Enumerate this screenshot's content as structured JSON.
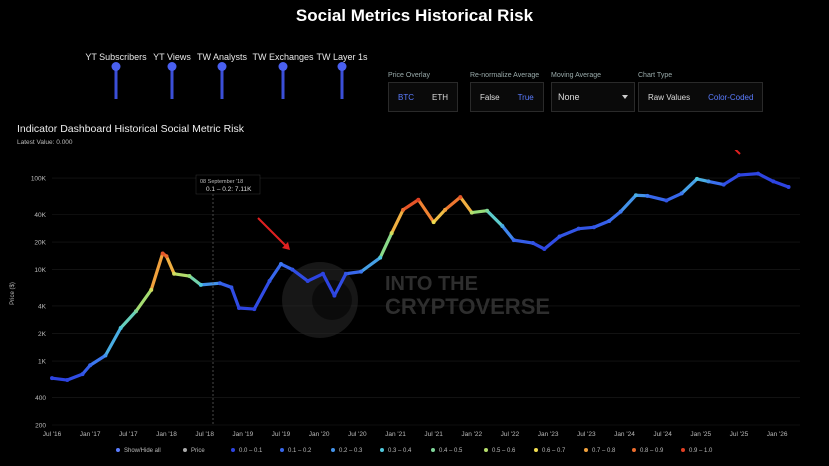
{
  "header": {
    "title": "Social Metrics Historical Risk"
  },
  "sliders": [
    {
      "label": "YT Subscribers"
    },
    {
      "label": "YT Views"
    },
    {
      "label": "TW Analysts"
    },
    {
      "label": "TW Exchanges"
    },
    {
      "label": "TW Layer 1s"
    }
  ],
  "controls": {
    "price_overlay": {
      "caption": "Price Overlay",
      "options": [
        "BTC",
        "ETH"
      ]
    },
    "renormalize": {
      "caption": "Re-normalize Average",
      "options": [
        "False",
        "True"
      ]
    },
    "moving_average": {
      "caption": "Moving Average",
      "value": "None"
    },
    "chart_type": {
      "caption": "Chart Type",
      "options": [
        "Raw Values",
        "Color-Coded"
      ]
    }
  },
  "indicator": {
    "title": "Indicator Dashboard Historical Social Metric Risk",
    "latest": "Latest Value: 0.000"
  },
  "colors": {
    "accent": "#5b7cff",
    "low": "#2f37d8",
    "high": "#e03020"
  },
  "watermark": {
    "line1": "INTO THE",
    "line2": "CRYPTOVERSE"
  },
  "tooltip": {
    "date": "08 September '18",
    "text": "0.1 – 0.2: 7.11K"
  },
  "legend": [
    "Show/Hide all",
    "Price",
    "0.0 – 0.1",
    "0.1 – 0.2",
    "0.2 – 0.3",
    "0.3 – 0.4",
    "0.4 – 0.5",
    "0.5 – 0.6",
    "0.6 – 0.7",
    "0.7 – 0.8",
    "0.8 – 0.9",
    "0.9 – 1.0"
  ],
  "chart_data": {
    "type": "scatter",
    "ylabel": "Price ($)",
    "yscale": "log",
    "ylim": [
      200,
      150000
    ],
    "y_ticks": [
      {
        "v": 100000,
        "l": "100K"
      },
      {
        "v": 40000,
        "l": "40K"
      },
      {
        "v": 20000,
        "l": "20K"
      },
      {
        "v": 10000,
        "l": "10K"
      },
      {
        "v": 4000,
        "l": "4K"
      },
      {
        "v": 2000,
        "l": "2K"
      },
      {
        "v": 1000,
        "l": "1K"
      },
      {
        "v": 400,
        "l": "400"
      },
      {
        "v": 200,
        "l": "200"
      }
    ],
    "x_ticks": [
      "Jul '16",
      "Jan '17",
      "Jul '17",
      "Jan '18",
      "Jul '18",
      "Jan '19",
      "Jul '19",
      "Jan '20",
      "Jul '20",
      "Jan '21",
      "Jul '21",
      "Jan '22",
      "Jul '22",
      "Jan '23",
      "Jul '23",
      "Jan '24",
      "Jul '24",
      "Jan '25",
      "Jul '25",
      "Jan '26"
    ],
    "x_range": [
      2016.5,
      2026.3
    ],
    "points": [
      [
        2016.5,
        650,
        0.05
      ],
      [
        2016.7,
        620,
        0.05
      ],
      [
        2016.9,
        720,
        0.1
      ],
      [
        2017.0,
        900,
        0.15
      ],
      [
        2017.2,
        1150,
        0.25
      ],
      [
        2017.4,
        2300,
        0.35
      ],
      [
        2017.6,
        3500,
        0.45
      ],
      [
        2017.8,
        6000,
        0.6
      ],
      [
        2017.95,
        15000,
        0.9
      ],
      [
        2018.0,
        14000,
        0.85
      ],
      [
        2018.1,
        9000,
        0.6
      ],
      [
        2018.3,
        8500,
        0.5
      ],
      [
        2018.45,
        6800,
        0.35
      ],
      [
        2018.7,
        7100,
        0.15
      ],
      [
        2018.85,
        6400,
        0.1
      ],
      [
        2018.95,
        3800,
        0.05
      ],
      [
        2019.15,
        3700,
        0.05
      ],
      [
        2019.35,
        7500,
        0.1
      ],
      [
        2019.5,
        11500,
        0.2
      ],
      [
        2019.65,
        10000,
        0.1
      ],
      [
        2019.85,
        7500,
        0.05
      ],
      [
        2020.05,
        9000,
        0.05
      ],
      [
        2020.2,
        5200,
        0.05
      ],
      [
        2020.35,
        9000,
        0.1
      ],
      [
        2020.55,
        9500,
        0.2
      ],
      [
        2020.8,
        13500,
        0.35
      ],
      [
        2020.95,
        25000,
        0.6
      ],
      [
        2021.1,
        45000,
        0.85
      ],
      [
        2021.3,
        58000,
        0.95
      ],
      [
        2021.5,
        33000,
        0.65
      ],
      [
        2021.65,
        45000,
        0.75
      ],
      [
        2021.85,
        62000,
        0.9
      ],
      [
        2022.0,
        42000,
        0.55
      ],
      [
        2022.2,
        44000,
        0.45
      ],
      [
        2022.4,
        30000,
        0.3
      ],
      [
        2022.55,
        21000,
        0.15
      ],
      [
        2022.8,
        19500,
        0.1
      ],
      [
        2022.95,
        16800,
        0.05
      ],
      [
        2023.15,
        23000,
        0.1
      ],
      [
        2023.4,
        28000,
        0.1
      ],
      [
        2023.6,
        29000,
        0.1
      ],
      [
        2023.8,
        34000,
        0.15
      ],
      [
        2023.95,
        43000,
        0.2
      ],
      [
        2024.15,
        65000,
        0.3
      ],
      [
        2024.3,
        64000,
        0.2
      ],
      [
        2024.55,
        57000,
        0.1
      ],
      [
        2024.75,
        68000,
        0.2
      ],
      [
        2024.95,
        98000,
        0.35
      ],
      [
        2025.1,
        92000,
        0.25
      ],
      [
        2025.3,
        85000,
        0.1
      ],
      [
        2025.5,
        108000,
        0.05
      ],
      [
        2025.75,
        112000,
        0.05
      ],
      [
        2025.95,
        92000,
        0.05
      ],
      [
        2026.15,
        80000,
        0.05
      ]
    ]
  }
}
